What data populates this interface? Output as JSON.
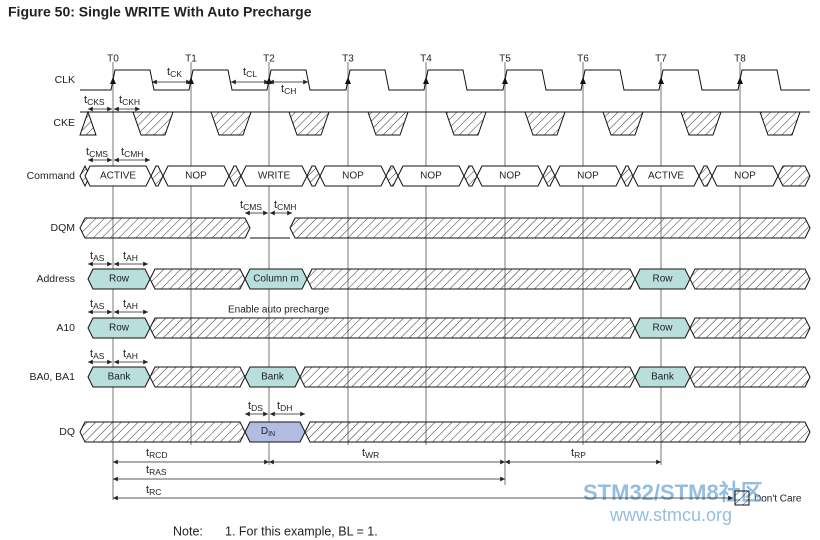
{
  "title": "Figure 50: Single WRITE With Auto Precharge",
  "clocks": [
    "T0",
    "T1",
    "T2",
    "T3",
    "T4",
    "T5",
    "T6",
    "T7",
    "T8"
  ],
  "signals": [
    "CLK",
    "CKE",
    "Command",
    "DQM",
    "Address",
    "A10",
    "BA0, BA1",
    "DQ"
  ],
  "commands": [
    "ACTIVE",
    "NOP",
    "WRITE",
    "NOP",
    "NOP",
    "NOP",
    "NOP",
    "ACTIVE",
    "NOP"
  ],
  "address": [
    "Row",
    "Column m",
    "Row"
  ],
  "a10": [
    "Row",
    "Row"
  ],
  "bank": [
    "Bank",
    "Bank",
    "Bank"
  ],
  "dq": {
    "main": "D",
    "sub": "IN"
  },
  "annotation": "Enable auto precharge",
  "timings": [
    {
      "main": "t",
      "sub": "CK"
    },
    {
      "main": "t",
      "sub": "CL"
    },
    {
      "main": "t",
      "sub": "CH"
    },
    {
      "main": "t",
      "sub": "CKS"
    },
    {
      "main": "t",
      "sub": "CKH"
    },
    {
      "main": "t",
      "sub": "CMS"
    },
    {
      "main": "t",
      "sub": "CMH"
    },
    {
      "main": "t",
      "sub": "CMS"
    },
    {
      "main": "t",
      "sub": "CMH"
    },
    {
      "main": "t",
      "sub": "AS"
    },
    {
      "main": "t",
      "sub": "AH"
    },
    {
      "main": "t",
      "sub": "AS"
    },
    {
      "main": "t",
      "sub": "AH"
    },
    {
      "main": "t",
      "sub": "AS"
    },
    {
      "main": "t",
      "sub": "AH"
    },
    {
      "main": "t",
      "sub": "DS"
    },
    {
      "main": "t",
      "sub": "DH"
    },
    {
      "main": "t",
      "sub": "RCD"
    },
    {
      "main": "t",
      "sub": "WR"
    },
    {
      "main": "t",
      "sub": "RP"
    },
    {
      "main": "t",
      "sub": "RAS"
    },
    {
      "main": "t",
      "sub": "RC"
    }
  ],
  "legend": "Don't Care",
  "note": {
    "label": "Note:",
    "text": "1.  For this example, BL = 1."
  },
  "watermark": [
    "STM32/STM8社区",
    "www.stmcu.org"
  ]
}
